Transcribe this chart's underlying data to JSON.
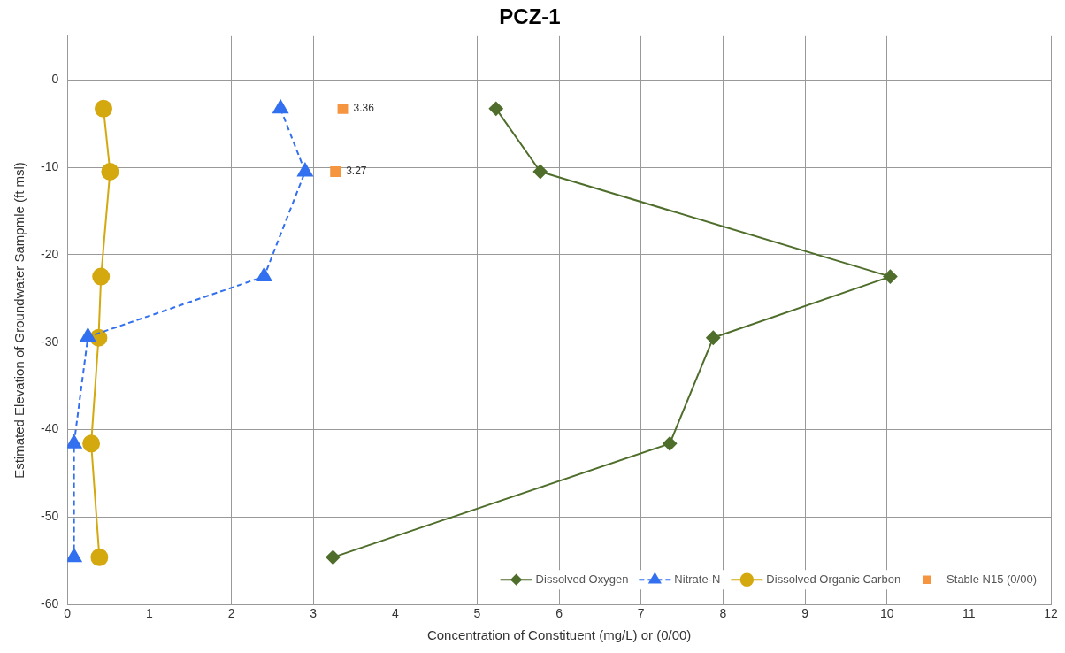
{
  "chart_data": {
    "type": "line",
    "title": "PCZ-1",
    "xlabel": "Concentration of Constituent (mg/L) or (0/00)",
    "ylabel": "Estimated Elevation of Groundwater Sampmle (ft msl)",
    "annotations": [
      {
        "text": "3.36",
        "x": 3.36,
        "y": -3.3
      },
      {
        "text": "3.27",
        "x": 3.27,
        "y": -10.5
      }
    ],
    "xlim": [
      0,
      12
    ],
    "xticks": [
      0,
      1,
      2,
      3,
      4,
      5,
      6,
      7,
      8,
      9,
      10,
      11,
      12
    ],
    "ylim": [
      -60,
      5
    ],
    "yticks": [
      -60,
      -50,
      -40,
      -30,
      -20,
      -10,
      0
    ],
    "grid": true,
    "legend": "bottom right",
    "series": [
      {
        "name": "Dissolved Oxygen",
        "type": "line",
        "color": "#4f6e2b",
        "marker": "diamond",
        "line_style": "solid",
        "x": [
          5.23,
          5.77,
          10.04,
          7.88,
          7.35,
          3.24
        ],
        "values": [
          -3.3,
          -10.5,
          -22.5,
          -29.5,
          -41.6,
          -54.6
        ]
      },
      {
        "name": "Nitrate-N",
        "type": "line",
        "color": "#3370f0",
        "marker": "triangle",
        "line_style": "dashed",
        "x": [
          2.6,
          2.9,
          2.4,
          0.25,
          0.08,
          0.08
        ],
        "values": [
          -3.3,
          -10.5,
          -22.5,
          -29.4,
          -41.6,
          -54.6
        ]
      },
      {
        "name": "Dissolved Organic Carbon",
        "type": "line",
        "color": "#d4a80f",
        "marker": "circle",
        "line_style": "solid",
        "x": [
          0.44,
          0.52,
          0.41,
          0.38,
          0.29,
          0.39
        ],
        "values": [
          -3.3,
          -10.5,
          -22.5,
          -29.5,
          -41.6,
          -54.6
        ]
      },
      {
        "name": "Stable N15 (0/00)",
        "type": "scatter",
        "color": "#f59540",
        "marker": "square",
        "x": [
          3.36,
          3.27
        ],
        "values": [
          -3.3,
          -10.5
        ]
      }
    ]
  }
}
